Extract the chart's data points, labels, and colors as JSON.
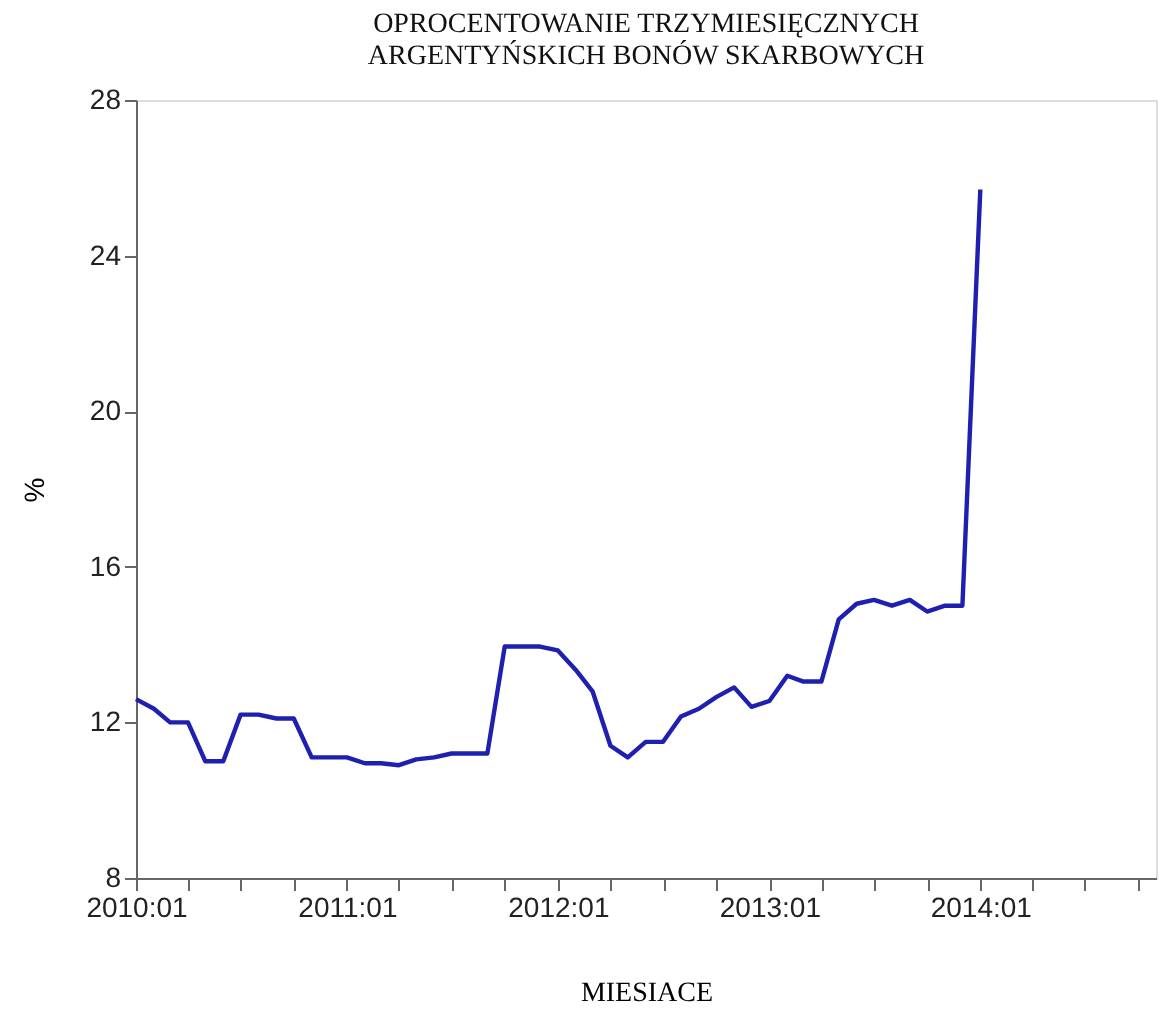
{
  "chart_data": {
    "type": "line",
    "title": [
      "OPROCENTOWANIE TRZYMIESIĘCZNYCH",
      "ARGENTYŃSKICH BONÓW SKARBOWYCH"
    ],
    "xlabel": "MIESIACE",
    "ylabel": "%",
    "x": [
      "2010-01",
      "2010-02",
      "2010-03",
      "2010-04",
      "2010-05",
      "2010-06",
      "2010-07",
      "2010-08",
      "2010-09",
      "2010-10",
      "2010-11",
      "2010-12",
      "2011-01",
      "2011-02",
      "2011-03",
      "2011-04",
      "2011-05",
      "2011-06",
      "2011-07",
      "2011-08",
      "2011-09",
      "2011-10",
      "2011-11",
      "2011-12",
      "2012-01",
      "2012-02",
      "2012-03",
      "2012-04",
      "2012-05",
      "2012-06",
      "2012-07",
      "2012-08",
      "2012-09",
      "2012-10",
      "2012-11",
      "2012-12",
      "2013-01",
      "2013-02",
      "2013-03",
      "2013-04",
      "2013-05",
      "2013-06",
      "2013-07",
      "2013-08",
      "2013-09",
      "2013-10",
      "2013-11",
      "2013-12",
      "2014-01"
    ],
    "series": [
      {
        "color": "#1f1fb0",
        "values": [
          12.6,
          12.35,
          12.0,
          12.0,
          11.0,
          11.0,
          12.2,
          12.2,
          12.1,
          12.1,
          11.1,
          11.1,
          11.1,
          10.95,
          10.95,
          10.9,
          11.05,
          11.1,
          11.2,
          11.2,
          11.2,
          13.95,
          13.95,
          13.95,
          13.85,
          13.35,
          12.8,
          11.4,
          11.1,
          11.5,
          11.5,
          12.15,
          12.35,
          12.65,
          12.9,
          12.4,
          12.55,
          13.2,
          13.05,
          13.05,
          14.65,
          15.05,
          15.15,
          15.0,
          15.15,
          14.85,
          15.0,
          15.0,
          25.7
        ]
      }
    ],
    "xlim": [
      "2010-01",
      "2014-11"
    ],
    "xticks": [
      {
        "value": "2010-01",
        "label": "2010:01"
      },
      {
        "value": "2010-04",
        "label": null
      },
      {
        "value": "2010-07",
        "label": null
      },
      {
        "value": "2010-10",
        "label": null
      },
      {
        "value": "2011-01",
        "label": "2011:01"
      },
      {
        "value": "2011-04",
        "label": null
      },
      {
        "value": "2011-07",
        "label": null
      },
      {
        "value": "2011-10",
        "label": null
      },
      {
        "value": "2012-01",
        "label": "2012:01"
      },
      {
        "value": "2012-04",
        "label": null
      },
      {
        "value": "2012-07",
        "label": null
      },
      {
        "value": "2012-10",
        "label": null
      },
      {
        "value": "2013-01",
        "label": "2013:01"
      },
      {
        "value": "2013-04",
        "label": null
      },
      {
        "value": "2013-07",
        "label": null
      },
      {
        "value": "2013-10",
        "label": null
      },
      {
        "value": "2014-01",
        "label": "2014:01"
      },
      {
        "value": "2014-04",
        "label": null
      },
      {
        "value": "2014-07",
        "label": null
      },
      {
        "value": "2014-10",
        "label": null
      }
    ],
    "ylim": [
      8,
      28
    ],
    "yticks": [
      8,
      12,
      16,
      20,
      24,
      28
    ],
    "grid": false,
    "marker": "none",
    "line_style": "solid"
  }
}
